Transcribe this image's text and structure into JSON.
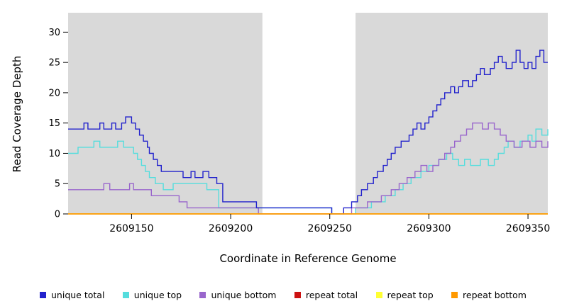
{
  "chart_data": {
    "type": "line",
    "interpolation": "step-after",
    "title": "",
    "xlabel": "Coordinate in Reference Genome",
    "ylabel": "Read Coverage Depth",
    "xlim": [
      2609118,
      2609360
    ],
    "ylim": [
      0,
      33.2
    ],
    "x_ticks": [
      2609150,
      2609200,
      2609250,
      2609300,
      2609350
    ],
    "y_ticks": [
      0,
      5,
      10,
      15,
      20,
      25,
      30
    ],
    "plot_background": "#d9d9d9",
    "page_background": "#ffffff",
    "highlight_region": {
      "x0": 2609216,
      "x1": 2609263,
      "color": "#ffffff"
    },
    "legend_position": "bottom",
    "draw_order": [
      1,
      2,
      0,
      3,
      4,
      5
    ],
    "series": [
      {
        "name": "unique total",
        "color": "#2222cc",
        "points": [
          [
            2609118,
            14
          ],
          [
            2609126,
            15
          ],
          [
            2609128,
            14
          ],
          [
            2609134,
            15
          ],
          [
            2609136,
            14
          ],
          [
            2609140,
            15
          ],
          [
            2609142,
            14
          ],
          [
            2609145,
            15
          ],
          [
            2609147,
            16
          ],
          [
            2609150,
            15
          ],
          [
            2609152,
            14
          ],
          [
            2609154,
            13
          ],
          [
            2609156,
            12
          ],
          [
            2609158,
            11
          ],
          [
            2609159,
            10
          ],
          [
            2609161,
            9
          ],
          [
            2609163,
            8
          ],
          [
            2609165,
            7
          ],
          [
            2609176,
            6
          ],
          [
            2609180,
            7
          ],
          [
            2609182,
            6
          ],
          [
            2609186,
            7
          ],
          [
            2609189,
            6
          ],
          [
            2609193,
            5
          ],
          [
            2609196,
            2
          ],
          [
            2609213,
            1
          ],
          [
            2609251,
            0
          ],
          [
            2609257,
            1
          ],
          [
            2609261,
            2
          ],
          [
            2609264,
            3
          ],
          [
            2609266,
            4
          ],
          [
            2609269,
            5
          ],
          [
            2609272,
            6
          ],
          [
            2609274,
            7
          ],
          [
            2609277,
            8
          ],
          [
            2609279,
            9
          ],
          [
            2609281,
            10
          ],
          [
            2609283,
            11
          ],
          [
            2609286,
            12
          ],
          [
            2609290,
            13
          ],
          [
            2609292,
            14
          ],
          [
            2609294,
            15
          ],
          [
            2609296,
            14
          ],
          [
            2609298,
            15
          ],
          [
            2609300,
            16
          ],
          [
            2609302,
            17
          ],
          [
            2609304,
            18
          ],
          [
            2609306,
            19
          ],
          [
            2609308,
            20
          ],
          [
            2609311,
            21
          ],
          [
            2609313,
            20
          ],
          [
            2609315,
            21
          ],
          [
            2609317,
            22
          ],
          [
            2609320,
            21
          ],
          [
            2609322,
            22
          ],
          [
            2609324,
            23
          ],
          [
            2609326,
            24
          ],
          [
            2609328,
            23
          ],
          [
            2609331,
            24
          ],
          [
            2609333,
            25
          ],
          [
            2609335,
            26
          ],
          [
            2609337,
            25
          ],
          [
            2609339,
            24
          ],
          [
            2609342,
            25
          ],
          [
            2609344,
            27
          ],
          [
            2609346,
            25
          ],
          [
            2609348,
            24
          ],
          [
            2609350,
            25
          ],
          [
            2609352,
            24
          ],
          [
            2609354,
            26
          ],
          [
            2609356,
            27
          ],
          [
            2609358,
            25
          ],
          [
            2609360,
            25
          ]
        ]
      },
      {
        "name": "unique top",
        "color": "#55dddd",
        "points": [
          [
            2609118,
            10
          ],
          [
            2609123,
            11
          ],
          [
            2609131,
            12
          ],
          [
            2609134,
            11
          ],
          [
            2609143,
            12
          ],
          [
            2609146,
            11
          ],
          [
            2609151,
            10
          ],
          [
            2609153,
            9
          ],
          [
            2609155,
            8
          ],
          [
            2609157,
            7
          ],
          [
            2609159,
            6
          ],
          [
            2609162,
            5
          ],
          [
            2609166,
            4
          ],
          [
            2609171,
            5
          ],
          [
            2609188,
            4
          ],
          [
            2609194,
            1
          ],
          [
            2609251,
            0
          ],
          [
            2609263,
            1
          ],
          [
            2609271,
            2
          ],
          [
            2609278,
            3
          ],
          [
            2609283,
            4
          ],
          [
            2609287,
            5
          ],
          [
            2609291,
            6
          ],
          [
            2609296,
            7
          ],
          [
            2609300,
            8
          ],
          [
            2609305,
            9
          ],
          [
            2609309,
            10
          ],
          [
            2609312,
            9
          ],
          [
            2609315,
            8
          ],
          [
            2609318,
            9
          ],
          [
            2609321,
            8
          ],
          [
            2609326,
            9
          ],
          [
            2609330,
            8
          ],
          [
            2609333,
            9
          ],
          [
            2609335,
            10
          ],
          [
            2609338,
            11
          ],
          [
            2609340,
            12
          ],
          [
            2609343,
            11
          ],
          [
            2609346,
            12
          ],
          [
            2609350,
            13
          ],
          [
            2609352,
            12
          ],
          [
            2609354,
            14
          ],
          [
            2609357,
            13
          ],
          [
            2609360,
            14
          ]
        ]
      },
      {
        "name": "unique bottom",
        "color": "#9966cc",
        "points": [
          [
            2609118,
            4
          ],
          [
            2609136,
            5
          ],
          [
            2609139,
            4
          ],
          [
            2609149,
            5
          ],
          [
            2609151,
            4
          ],
          [
            2609160,
            3
          ],
          [
            2609174,
            2
          ],
          [
            2609178,
            1
          ],
          [
            2609214,
            0
          ],
          [
            2609261,
            1
          ],
          [
            2609269,
            2
          ],
          [
            2609276,
            3
          ],
          [
            2609281,
            4
          ],
          [
            2609285,
            5
          ],
          [
            2609289,
            6
          ],
          [
            2609293,
            7
          ],
          [
            2609296,
            8
          ],
          [
            2609299,
            7
          ],
          [
            2609302,
            8
          ],
          [
            2609305,
            9
          ],
          [
            2609308,
            10
          ],
          [
            2609311,
            11
          ],
          [
            2609313,
            12
          ],
          [
            2609316,
            13
          ],
          [
            2609319,
            14
          ],
          [
            2609322,
            15
          ],
          [
            2609327,
            14
          ],
          [
            2609330,
            15
          ],
          [
            2609333,
            14
          ],
          [
            2609336,
            13
          ],
          [
            2609339,
            12
          ],
          [
            2609343,
            11
          ],
          [
            2609347,
            12
          ],
          [
            2609351,
            11
          ],
          [
            2609354,
            12
          ],
          [
            2609357,
            11
          ],
          [
            2609360,
            12
          ]
        ]
      },
      {
        "name": "repeat total",
        "color": "#cc1111",
        "points": [
          [
            2609118,
            0
          ],
          [
            2609360,
            0
          ]
        ]
      },
      {
        "name": "repeat top",
        "color": "#ffff33",
        "points": [
          [
            2609118,
            0
          ],
          [
            2609360,
            0
          ]
        ]
      },
      {
        "name": "repeat bottom",
        "color": "#ff9900",
        "points": [
          [
            2609118,
            0
          ],
          [
            2609360,
            0
          ]
        ]
      }
    ]
  }
}
